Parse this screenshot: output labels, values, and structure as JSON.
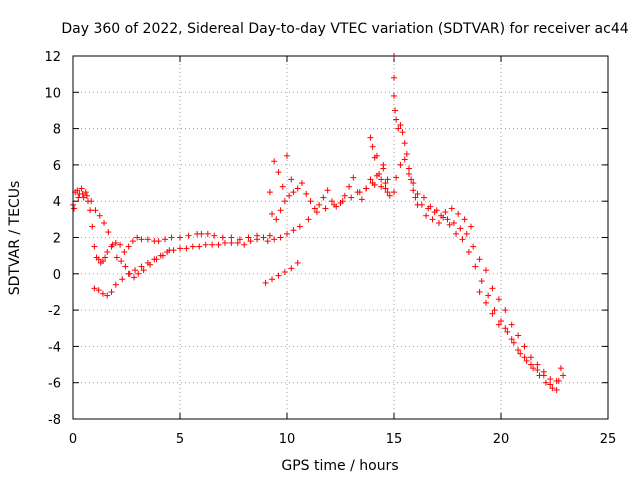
{
  "chart_data": {
    "type": "scatter",
    "title": "Day 360 of 2022, Sidereal Day-to-day VTEC variation (SDTVAR) for receiver ac44",
    "xlabel": "GPS time / hours",
    "ylabel": "SDTVAR / TECUs",
    "xlim": [
      0,
      25
    ],
    "ylim": [
      -8,
      12
    ],
    "xticks": [
      0,
      5,
      10,
      15,
      20,
      25
    ],
    "yticks": [
      -8,
      -6,
      -4,
      -2,
      0,
      2,
      4,
      6,
      8,
      10,
      12
    ],
    "grid": true,
    "marker": "+",
    "color": "#ff0000",
    "series": [
      {
        "name": "SDTVAR",
        "x": [
          0.0,
          0.1,
          0.2,
          0.3,
          0.4,
          0.5,
          0.6,
          0.7,
          0.8,
          0.9,
          1.0,
          1.1,
          1.2,
          1.3,
          1.4,
          1.5,
          1.6,
          1.8,
          2.0,
          2.2,
          2.4,
          2.6,
          2.8,
          3.0,
          3.2,
          3.5,
          3.8,
          4.0,
          4.3,
          4.6,
          5.0,
          5.4,
          5.8,
          6.0,
          6.3,
          6.6,
          7.0,
          7.4,
          7.8,
          8.2,
          8.6,
          8.9,
          9.1,
          9.4,
          9.7,
          10.0,
          10.3,
          10.6,
          11.0,
          11.4,
          11.8,
          12.2,
          12.6,
          13.0,
          13.4,
          13.7,
          14.0,
          14.2,
          14.4,
          14.6,
          14.8,
          15.0,
          15.1,
          15.3,
          15.5,
          15.7,
          15.9,
          16.1,
          16.3,
          16.6,
          16.9,
          17.2,
          17.5,
          17.8,
          18.1,
          18.4,
          18.7,
          19.0,
          19.3,
          19.6,
          19.9,
          20.2,
          20.5,
          20.8,
          21.1,
          21.4,
          21.7,
          22.0,
          22.3,
          22.6,
          22.9,
          0.05,
          0.25,
          0.45,
          0.65,
          0.85,
          1.05,
          1.25,
          1.45,
          1.65,
          1.85,
          2.05,
          2.25,
          2.45,
          2.65,
          2.85,
          3.05,
          3.3,
          3.6,
          3.9,
          4.2,
          4.5,
          1.0,
          1.2,
          1.4,
          1.6,
          1.8,
          2.0,
          2.3,
          2.6,
          2.9,
          3.2,
          3.5,
          3.8,
          4.1,
          4.4,
          4.7,
          5.0,
          5.3,
          5.6,
          5.9,
          6.2,
          6.5,
          6.8,
          7.1,
          7.4,
          7.7,
          8.0,
          8.3,
          8.6,
          8.9,
          9.2,
          9.0,
          9.3,
          9.6,
          9.9,
          10.2,
          10.5,
          9.2,
          9.4,
          9.6,
          9.8,
          10.0,
          10.2,
          9.3,
          9.5,
          9.7,
          9.9,
          10.1,
          10.3,
          10.5,
          10.7,
          10.9,
          11.1,
          11.3,
          11.5,
          11.7,
          11.9,
          12.1,
          12.3,
          12.5,
          12.7,
          12.9,
          13.1,
          13.3,
          13.5,
          13.7,
          13.9,
          14.1,
          14.3,
          14.5,
          14.7,
          13.9,
          14.0,
          14.1,
          14.2,
          14.3,
          14.4,
          14.5,
          14.6,
          14.7,
          15.0,
          15.0,
          15.0,
          15.05,
          15.1,
          15.2,
          15.3,
          15.4,
          15.5,
          15.6,
          15.7,
          15.8,
          15.9,
          16.0,
          16.1,
          16.4,
          16.7,
          17.0,
          17.3,
          17.6,
          17.9,
          18.2,
          18.5,
          18.8,
          19.1,
          19.4,
          19.7,
          20.0,
          20.3,
          20.6,
          20.9,
          21.2,
          21.5,
          21.8,
          22.1,
          22.4,
          22.7,
          19.0,
          19.3,
          19.6,
          19.9,
          20.2,
          20.5,
          20.8,
          21.1,
          21.4,
          21.7,
          22.0,
          22.3,
          22.6,
          22.8,
          16.5,
          16.8,
          17.1,
          17.4,
          17.7,
          18.0,
          18.3,
          18.6
        ],
        "y": [
          3.8,
          4.5,
          4.6,
          4.4,
          4.7,
          4.2,
          4.5,
          4.0,
          3.5,
          2.6,
          1.5,
          0.9,
          0.8,
          0.6,
          0.7,
          0.9,
          1.2,
          1.5,
          1.7,
          1.6,
          1.2,
          1.5,
          1.8,
          2.0,
          1.9,
          1.9,
          1.8,
          1.8,
          1.9,
          2.0,
          2.0,
          2.1,
          2.2,
          2.2,
          2.2,
          2.1,
          2.0,
          2.0,
          1.9,
          2.0,
          2.1,
          2.0,
          1.8,
          1.9,
          2.0,
          2.2,
          2.4,
          2.6,
          3.0,
          3.4,
          3.6,
          3.8,
          4.0,
          4.2,
          4.5,
          4.7,
          5.0,
          5.4,
          5.2,
          4.7,
          4.3,
          4.5,
          5.3,
          6.0,
          6.3,
          5.5,
          5.0,
          4.4,
          3.8,
          3.6,
          3.4,
          3.2,
          3.0,
          2.8,
          2.5,
          2.2,
          1.5,
          0.8,
          0.2,
          -0.8,
          -1.4,
          -2.0,
          -2.8,
          -3.4,
          -4.0,
          -4.6,
          -5.0,
          -5.4,
          -5.8,
          -5.9,
          -5.6,
          3.6,
          4.2,
          4.4,
          4.3,
          4.0,
          3.5,
          3.2,
          2.8,
          2.3,
          1.6,
          0.9,
          0.7,
          0.4,
          0.0,
          -0.2,
          0.0,
          0.2,
          0.5,
          0.8,
          1.0,
          1.3,
          -0.8,
          -0.9,
          -1.1,
          -1.2,
          -1.0,
          -0.6,
          -0.3,
          0.0,
          0.2,
          0.4,
          0.6,
          0.8,
          1.0,
          1.2,
          1.3,
          1.4,
          1.4,
          1.5,
          1.5,
          1.6,
          1.6,
          1.6,
          1.7,
          1.7,
          1.7,
          1.6,
          1.8,
          1.9,
          2.0,
          2.1,
          -0.5,
          -0.3,
          -0.1,
          0.1,
          0.3,
          0.6,
          4.5,
          6.2,
          5.6,
          4.8,
          6.5,
          5.2,
          3.3,
          3.0,
          3.5,
          4.0,
          4.3,
          4.5,
          4.7,
          5.0,
          4.4,
          4.0,
          3.6,
          3.8,
          4.2,
          4.6,
          4.0,
          3.7,
          3.9,
          4.3,
          4.8,
          5.3,
          4.5,
          4.1,
          4.7,
          5.2,
          4.9,
          5.5,
          6.0,
          5.2,
          7.5,
          7.0,
          6.4,
          6.5,
          5.5,
          4.8,
          5.8,
          5.0,
          4.5,
          12.0,
          10.8,
          9.8,
          9.0,
          8.5,
          8.0,
          8.2,
          7.8,
          7.2,
          6.6,
          5.8,
          5.2,
          4.6,
          4.2,
          3.8,
          4.2,
          3.7,
          3.5,
          3.1,
          2.7,
          2.2,
          1.9,
          1.2,
          0.4,
          -0.4,
          -1.2,
          -2.0,
          -2.6,
          -3.2,
          -3.8,
          -4.4,
          -4.8,
          -5.2,
          -5.6,
          -6.0,
          -6.3,
          -5.9,
          -1.0,
          -1.6,
          -2.2,
          -2.8,
          -3.0,
          -3.6,
          -4.2,
          -4.6,
          -5.0,
          -5.3,
          -5.6,
          -6.1,
          -6.4,
          -5.2,
          3.2,
          3.0,
          2.8,
          3.4,
          3.6,
          3.3,
          3.0,
          2.6
        ]
      }
    ]
  }
}
